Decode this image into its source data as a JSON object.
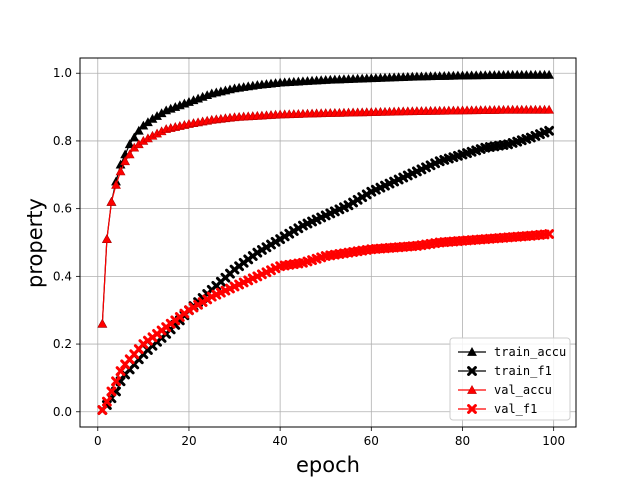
{
  "chart_data": {
    "type": "line",
    "title": "",
    "xlabel": "epoch",
    "ylabel": "property",
    "xlim": [
      -3.9,
      104.9
    ],
    "ylim": [
      -0.045,
      1.045
    ],
    "xticks": [
      0,
      20,
      40,
      60,
      80,
      100
    ],
    "yticks": [
      0.0,
      0.2,
      0.4,
      0.6,
      0.8,
      1.0
    ],
    "xtick_labels": [
      "0",
      "20",
      "40",
      "60",
      "80",
      "100"
    ],
    "ytick_labels": [
      "0.0",
      "0.2",
      "0.4",
      "0.6",
      "0.8",
      "1.0"
    ],
    "grid": true,
    "legend_position": "lower-right",
    "x": {
      "start": 1,
      "end": 99,
      "step": 1
    },
    "series": [
      {
        "name": "train_accu",
        "color": "#000000",
        "marker": "triangle-icon",
        "keypoints": [
          [
            1,
            0.26
          ],
          [
            2,
            0.51
          ],
          [
            3,
            0.62
          ],
          [
            4,
            0.68
          ],
          [
            5,
            0.73
          ],
          [
            6,
            0.76
          ],
          [
            7,
            0.79
          ],
          [
            8,
            0.81
          ],
          [
            9,
            0.83
          ],
          [
            10,
            0.845
          ],
          [
            12,
            0.865
          ],
          [
            15,
            0.89
          ],
          [
            20,
            0.915
          ],
          [
            25,
            0.94
          ],
          [
            30,
            0.955
          ],
          [
            35,
            0.965
          ],
          [
            40,
            0.972
          ],
          [
            50,
            0.98
          ],
          [
            60,
            0.985
          ],
          [
            70,
            0.99
          ],
          [
            80,
            0.993
          ],
          [
            90,
            0.995
          ],
          [
            99,
            0.995
          ]
        ]
      },
      {
        "name": "train_f1",
        "color": "#000000",
        "marker": "x-filled-icon",
        "keypoints": [
          [
            1,
            0.005
          ],
          [
            2,
            0.02
          ],
          [
            3,
            0.04
          ],
          [
            4,
            0.06
          ],
          [
            5,
            0.09
          ],
          [
            6,
            0.11
          ],
          [
            8,
            0.14
          ],
          [
            10,
            0.17
          ],
          [
            12,
            0.195
          ],
          [
            15,
            0.23
          ],
          [
            18,
            0.27
          ],
          [
            20,
            0.3
          ],
          [
            25,
            0.36
          ],
          [
            30,
            0.42
          ],
          [
            35,
            0.47
          ],
          [
            40,
            0.51
          ],
          [
            45,
            0.55
          ],
          [
            50,
            0.58
          ],
          [
            55,
            0.61
          ],
          [
            60,
            0.65
          ],
          [
            65,
            0.68
          ],
          [
            70,
            0.71
          ],
          [
            75,
            0.74
          ],
          [
            80,
            0.76
          ],
          [
            85,
            0.78
          ],
          [
            90,
            0.79
          ],
          [
            95,
            0.81
          ],
          [
            99,
            0.83
          ]
        ]
      },
      {
        "name": "val_accu",
        "color": "#ff0000",
        "marker": "triangle-icon",
        "keypoints": [
          [
            1,
            0.26
          ],
          [
            2,
            0.51
          ],
          [
            3,
            0.62
          ],
          [
            4,
            0.67
          ],
          [
            5,
            0.71
          ],
          [
            6,
            0.74
          ],
          [
            7,
            0.76
          ],
          [
            8,
            0.78
          ],
          [
            9,
            0.79
          ],
          [
            10,
            0.8
          ],
          [
            12,
            0.815
          ],
          [
            15,
            0.835
          ],
          [
            20,
            0.85
          ],
          [
            25,
            0.862
          ],
          [
            30,
            0.87
          ],
          [
            40,
            0.878
          ],
          [
            50,
            0.882
          ],
          [
            60,
            0.885
          ],
          [
            70,
            0.888
          ],
          [
            80,
            0.89
          ],
          [
            90,
            0.892
          ],
          [
            99,
            0.892
          ]
        ]
      },
      {
        "name": "val_f1",
        "color": "#ff0000",
        "marker": "x-filled-icon",
        "keypoints": [
          [
            1,
            0.005
          ],
          [
            2,
            0.03
          ],
          [
            3,
            0.06
          ],
          [
            4,
            0.09
          ],
          [
            5,
            0.12
          ],
          [
            6,
            0.14
          ],
          [
            8,
            0.17
          ],
          [
            10,
            0.2
          ],
          [
            12,
            0.22
          ],
          [
            15,
            0.25
          ],
          [
            18,
            0.28
          ],
          [
            20,
            0.3
          ],
          [
            25,
            0.34
          ],
          [
            30,
            0.37
          ],
          [
            35,
            0.4
          ],
          [
            40,
            0.43
          ],
          [
            45,
            0.44
          ],
          [
            50,
            0.46
          ],
          [
            55,
            0.47
          ],
          [
            60,
            0.48
          ],
          [
            65,
            0.485
          ],
          [
            70,
            0.49
          ],
          [
            75,
            0.5
          ],
          [
            80,
            0.505
          ],
          [
            85,
            0.51
          ],
          [
            90,
            0.515
          ],
          [
            95,
            0.52
          ],
          [
            99,
            0.525
          ]
        ]
      }
    ]
  }
}
